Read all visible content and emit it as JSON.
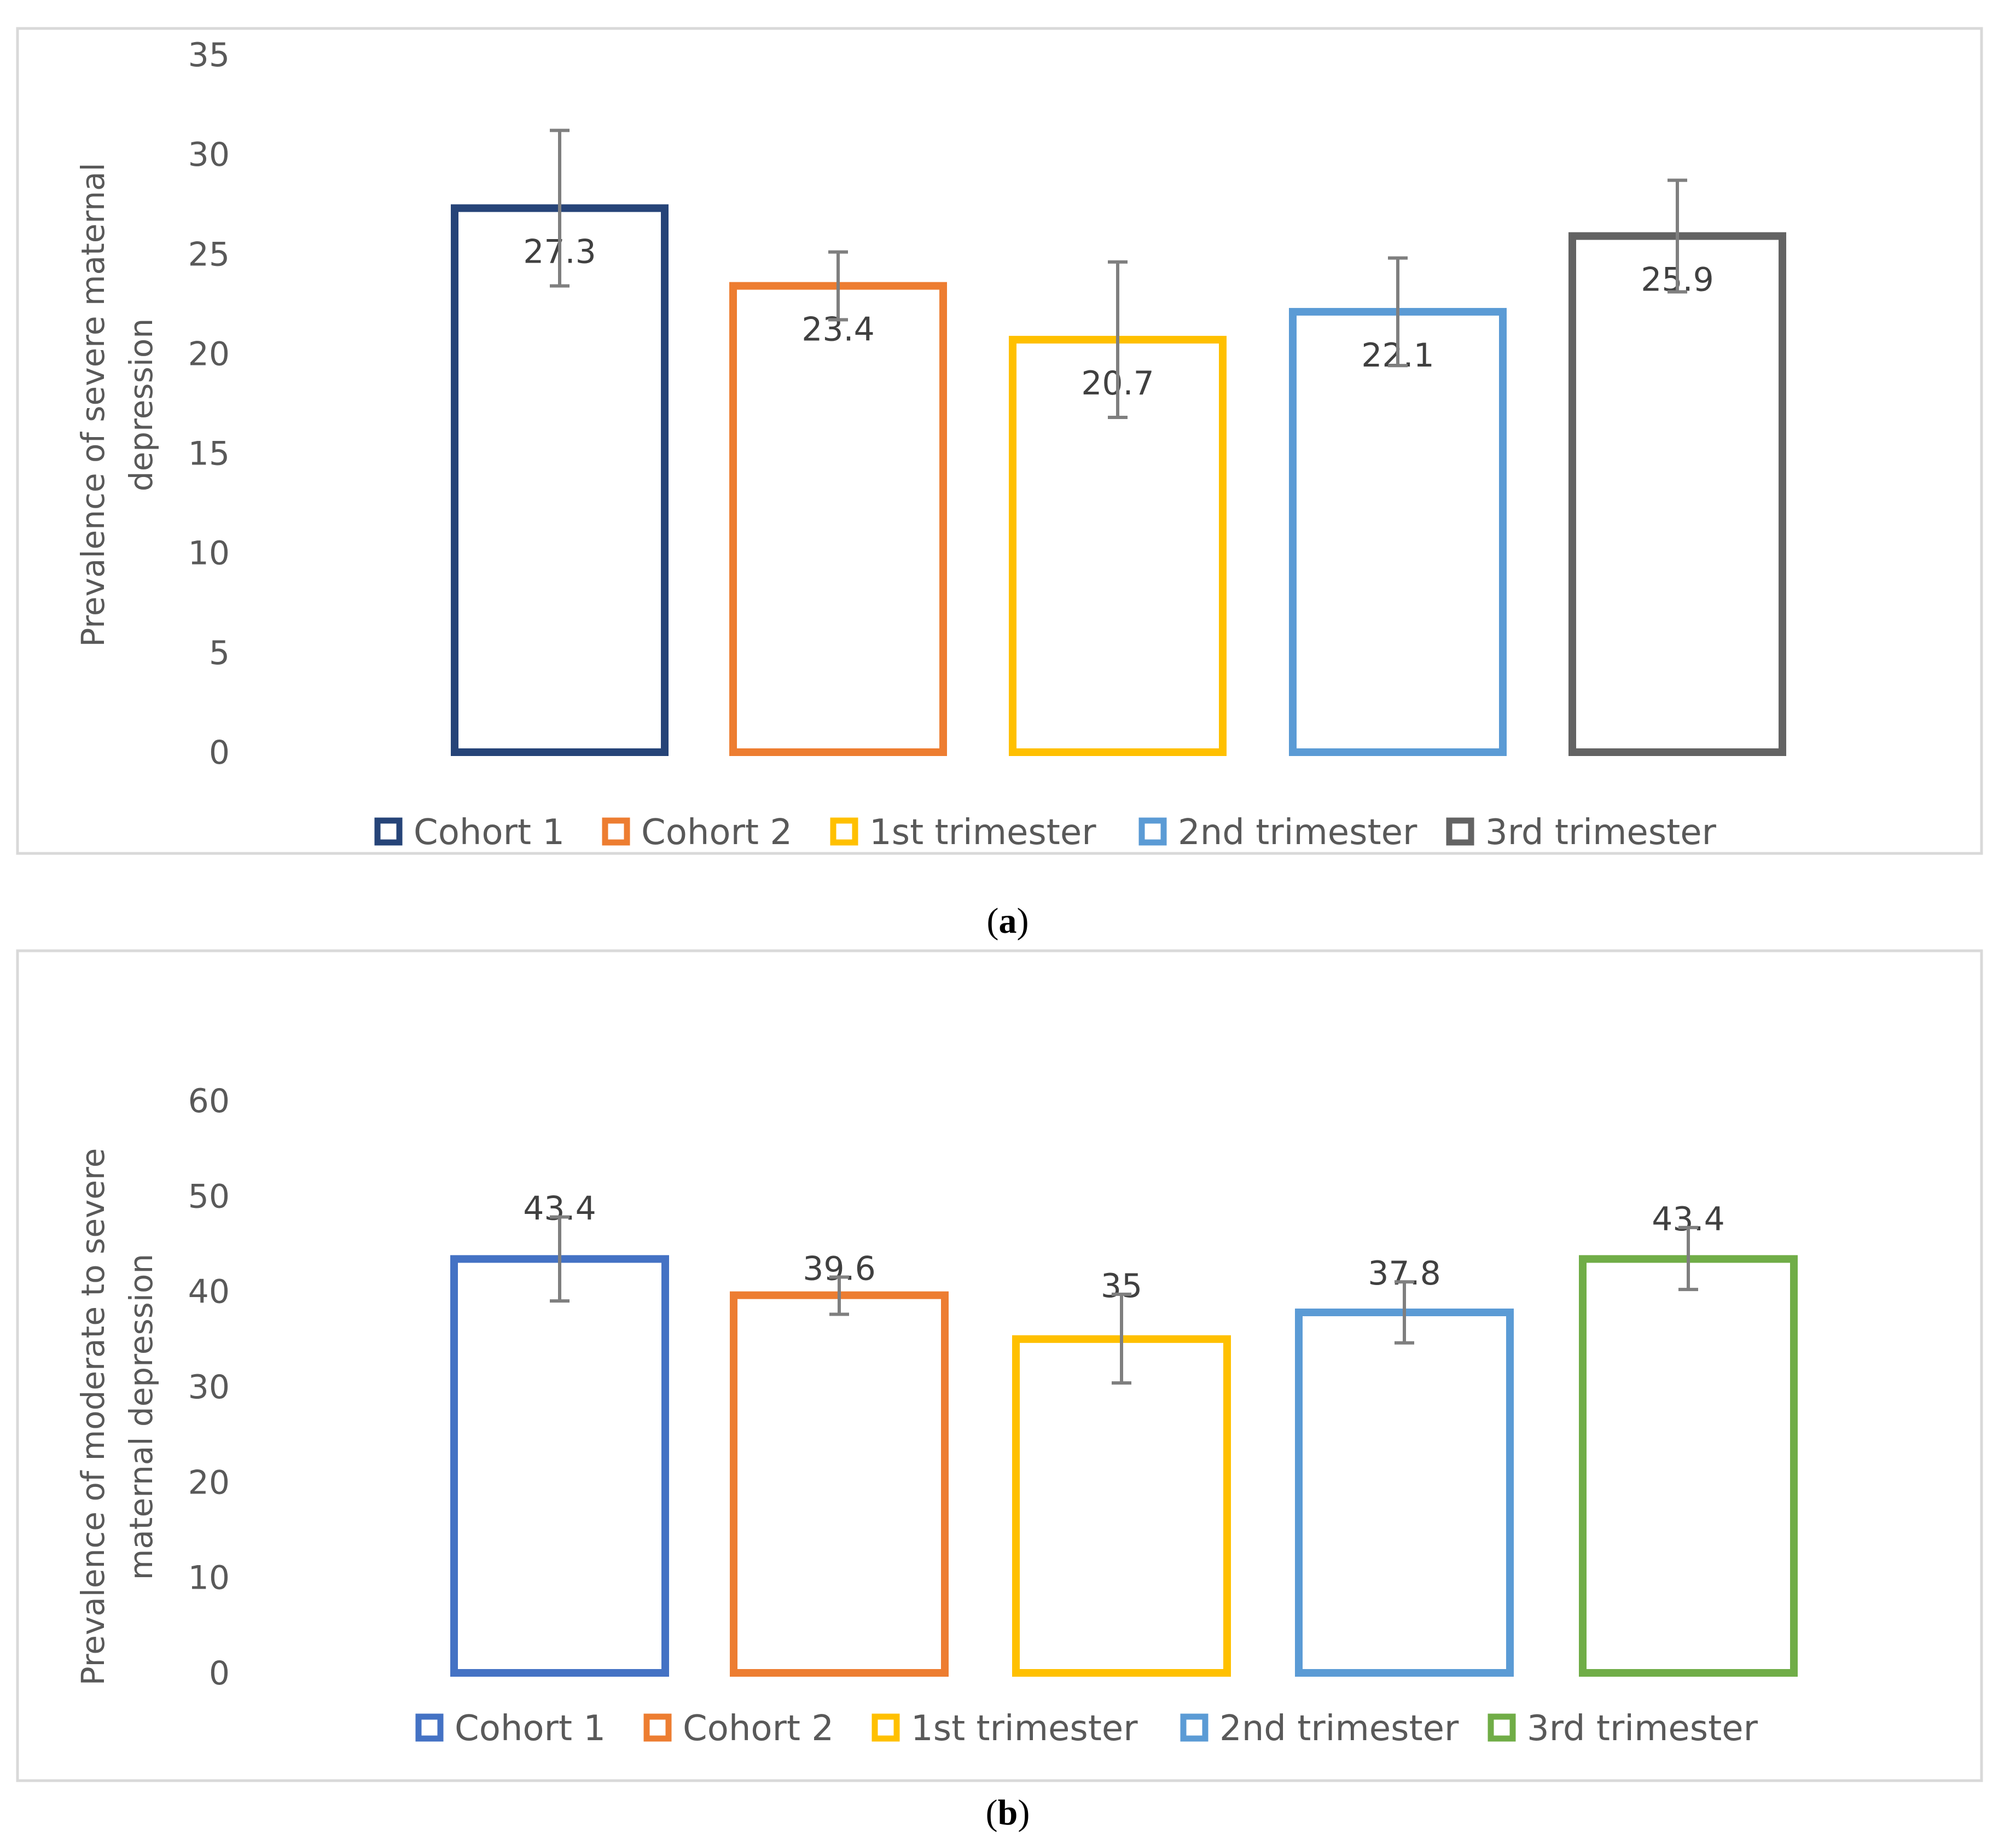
{
  "chart_data": [
    {
      "panel": "a",
      "type": "bar",
      "ylabel": "Prevalence of severe maternal depression",
      "ylabel_lines": [
        "Prevalence of severe maternal",
        "depression"
      ],
      "ylim": [
        0,
        35
      ],
      "yticks": [
        0,
        5,
        10,
        15,
        20,
        25,
        30,
        35
      ],
      "grid": false,
      "legend_position": "bottom",
      "caption": {
        "open": "(",
        "letter": "a",
        "close": ")"
      },
      "bars": [
        {
          "name": "Cohort 1",
          "value": 27.3,
          "label": "27.3",
          "err_low": 23.4,
          "err_high": 31.2,
          "color": "#264478"
        },
        {
          "name": "Cohort 2",
          "value": 23.4,
          "label": "23.4",
          "err_low": 21.7,
          "err_high": 25.1,
          "color": "#ED7D31"
        },
        {
          "name": "1st trimester",
          "value": 20.7,
          "label": "20.7",
          "err_low": 16.8,
          "err_high": 24.6,
          "color": "#FFC000"
        },
        {
          "name": "2nd trimester",
          "value": 22.1,
          "label": "22.1",
          "err_low": 19.4,
          "err_high": 24.8,
          "color": "#5B9BD5"
        },
        {
          "name": "3rd trimester",
          "value": 25.9,
          "label": "25.9",
          "err_low": 23.1,
          "err_high": 28.7,
          "color": "#636363"
        }
      ]
    },
    {
      "panel": "b",
      "type": "bar",
      "ylabel": "Prevalence of moderate to severe maternal depression",
      "ylabel_lines": [
        "Prevalence of moderate to severe",
        "maternal depression"
      ],
      "ylim": [
        0,
        60
      ],
      "yticks": [
        0,
        10,
        20,
        30,
        40,
        50,
        60
      ],
      "grid": false,
      "legend_position": "bottom",
      "caption": {
        "open": "(",
        "letter": "b",
        "close": ")"
      },
      "bars": [
        {
          "name": "Cohort 1",
          "value": 43.4,
          "label": "43.4",
          "err_low": 39.0,
          "err_high": 47.8,
          "color": "#4472C4"
        },
        {
          "name": "Cohort 2",
          "value": 39.6,
          "label": "39.6",
          "err_low": 37.6,
          "err_high": 41.5,
          "color": "#ED7D31"
        },
        {
          "name": "1st trimester",
          "value": 35,
          "label": "35",
          "err_low": 30.4,
          "err_high": 39.7,
          "color": "#FFC000"
        },
        {
          "name": "2nd trimester",
          "value": 37.8,
          "label": "37.8",
          "err_low": 34.6,
          "err_high": 41.0,
          "color": "#5B9BD5"
        },
        {
          "name": "3rd trimester",
          "value": 43.4,
          "label": "43.4",
          "err_low": 40.2,
          "err_high": 46.7,
          "color": "#70AD47"
        }
      ]
    }
  ]
}
